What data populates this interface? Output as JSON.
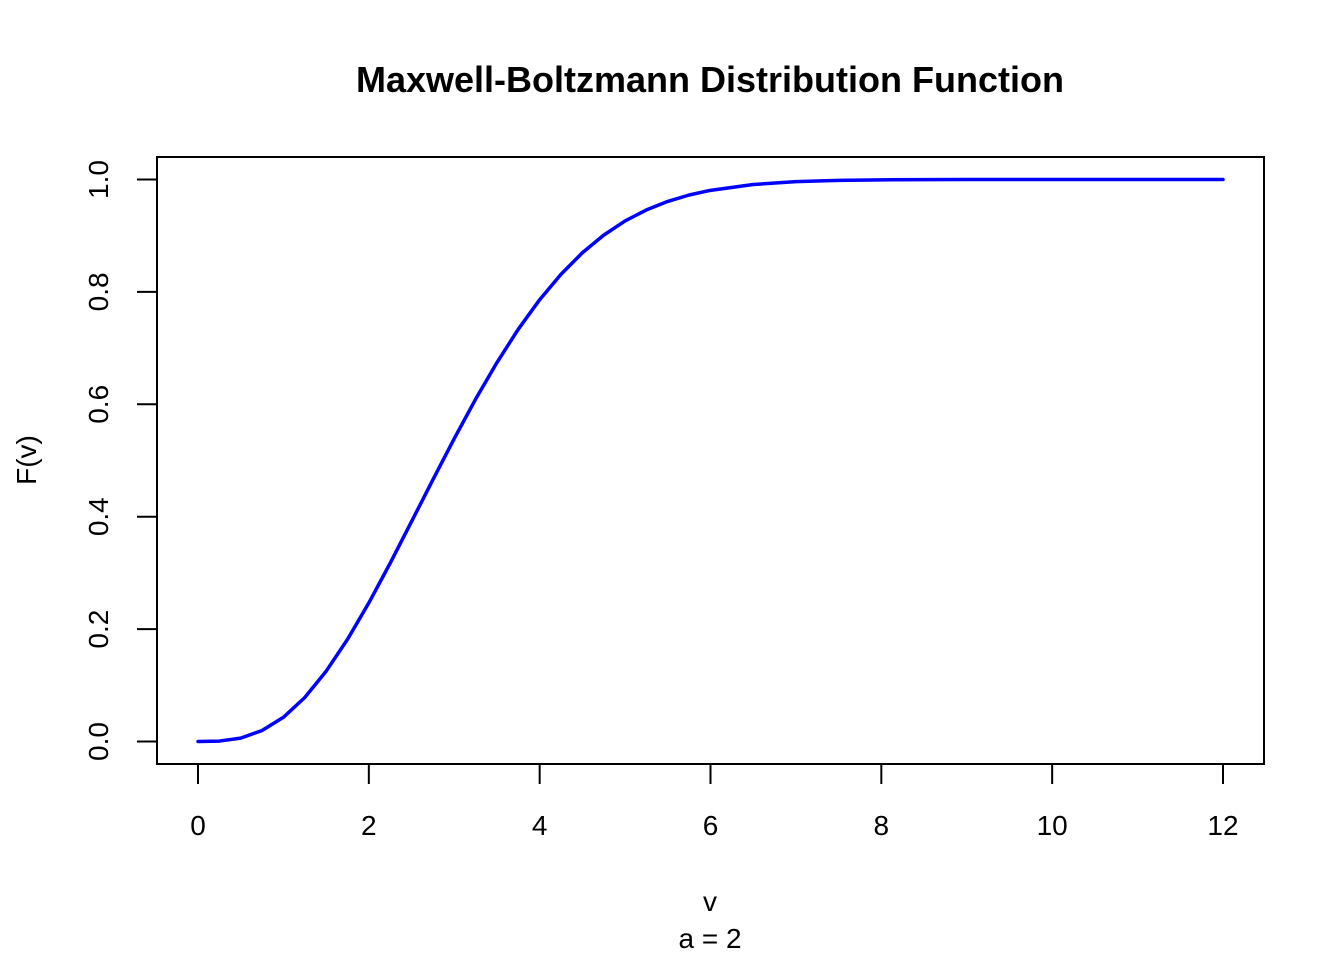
{
  "chart_data": {
    "type": "line",
    "title": "Maxwell-Boltzmann Distribution Function",
    "xlabel": "v",
    "subtitle": "a = 2",
    "ylabel": "F(v)",
    "xlim": [
      -0.48,
      12.48
    ],
    "ylim": [
      -0.04,
      1.04
    ],
    "x_ticks": [
      0,
      2,
      4,
      6,
      8,
      10,
      12
    ],
    "x_tick_labels": [
      "0",
      "2",
      "4",
      "6",
      "8",
      "10",
      "12"
    ],
    "y_ticks": [
      0.0,
      0.2,
      0.4,
      0.6,
      0.8,
      1.0
    ],
    "y_tick_labels": [
      "0.0",
      "0.2",
      "0.4",
      "0.6",
      "0.8",
      "1.0"
    ],
    "grid": false,
    "series": [
      {
        "color": "#0000ff",
        "x": [
          0,
          0.25,
          0.5,
          0.75,
          1,
          1.25,
          1.5,
          1.75,
          2,
          2.25,
          2.5,
          2.75,
          3,
          3.25,
          3.5,
          3.75,
          4,
          4.25,
          4.5,
          4.75,
          5,
          5.25,
          5.5,
          5.75,
          6,
          6.5,
          7,
          7.5,
          8,
          8.5,
          9,
          10,
          11,
          12
        ],
        "y": [
          0,
          0.0008,
          0.0061,
          0.0196,
          0.0431,
          0.0783,
          0.1251,
          0.1817,
          0.2466,
          0.3174,
          0.3913,
          0.4659,
          0.5391,
          0.6091,
          0.6743,
          0.7336,
          0.7861,
          0.8314,
          0.8696,
          0.901,
          0.9262,
          0.9459,
          0.961,
          0.9724,
          0.9807,
          0.9911,
          0.9962,
          0.9985,
          0.9994,
          0.9998,
          0.9999,
          1.0,
          1.0,
          1.0
        ]
      }
    ]
  }
}
